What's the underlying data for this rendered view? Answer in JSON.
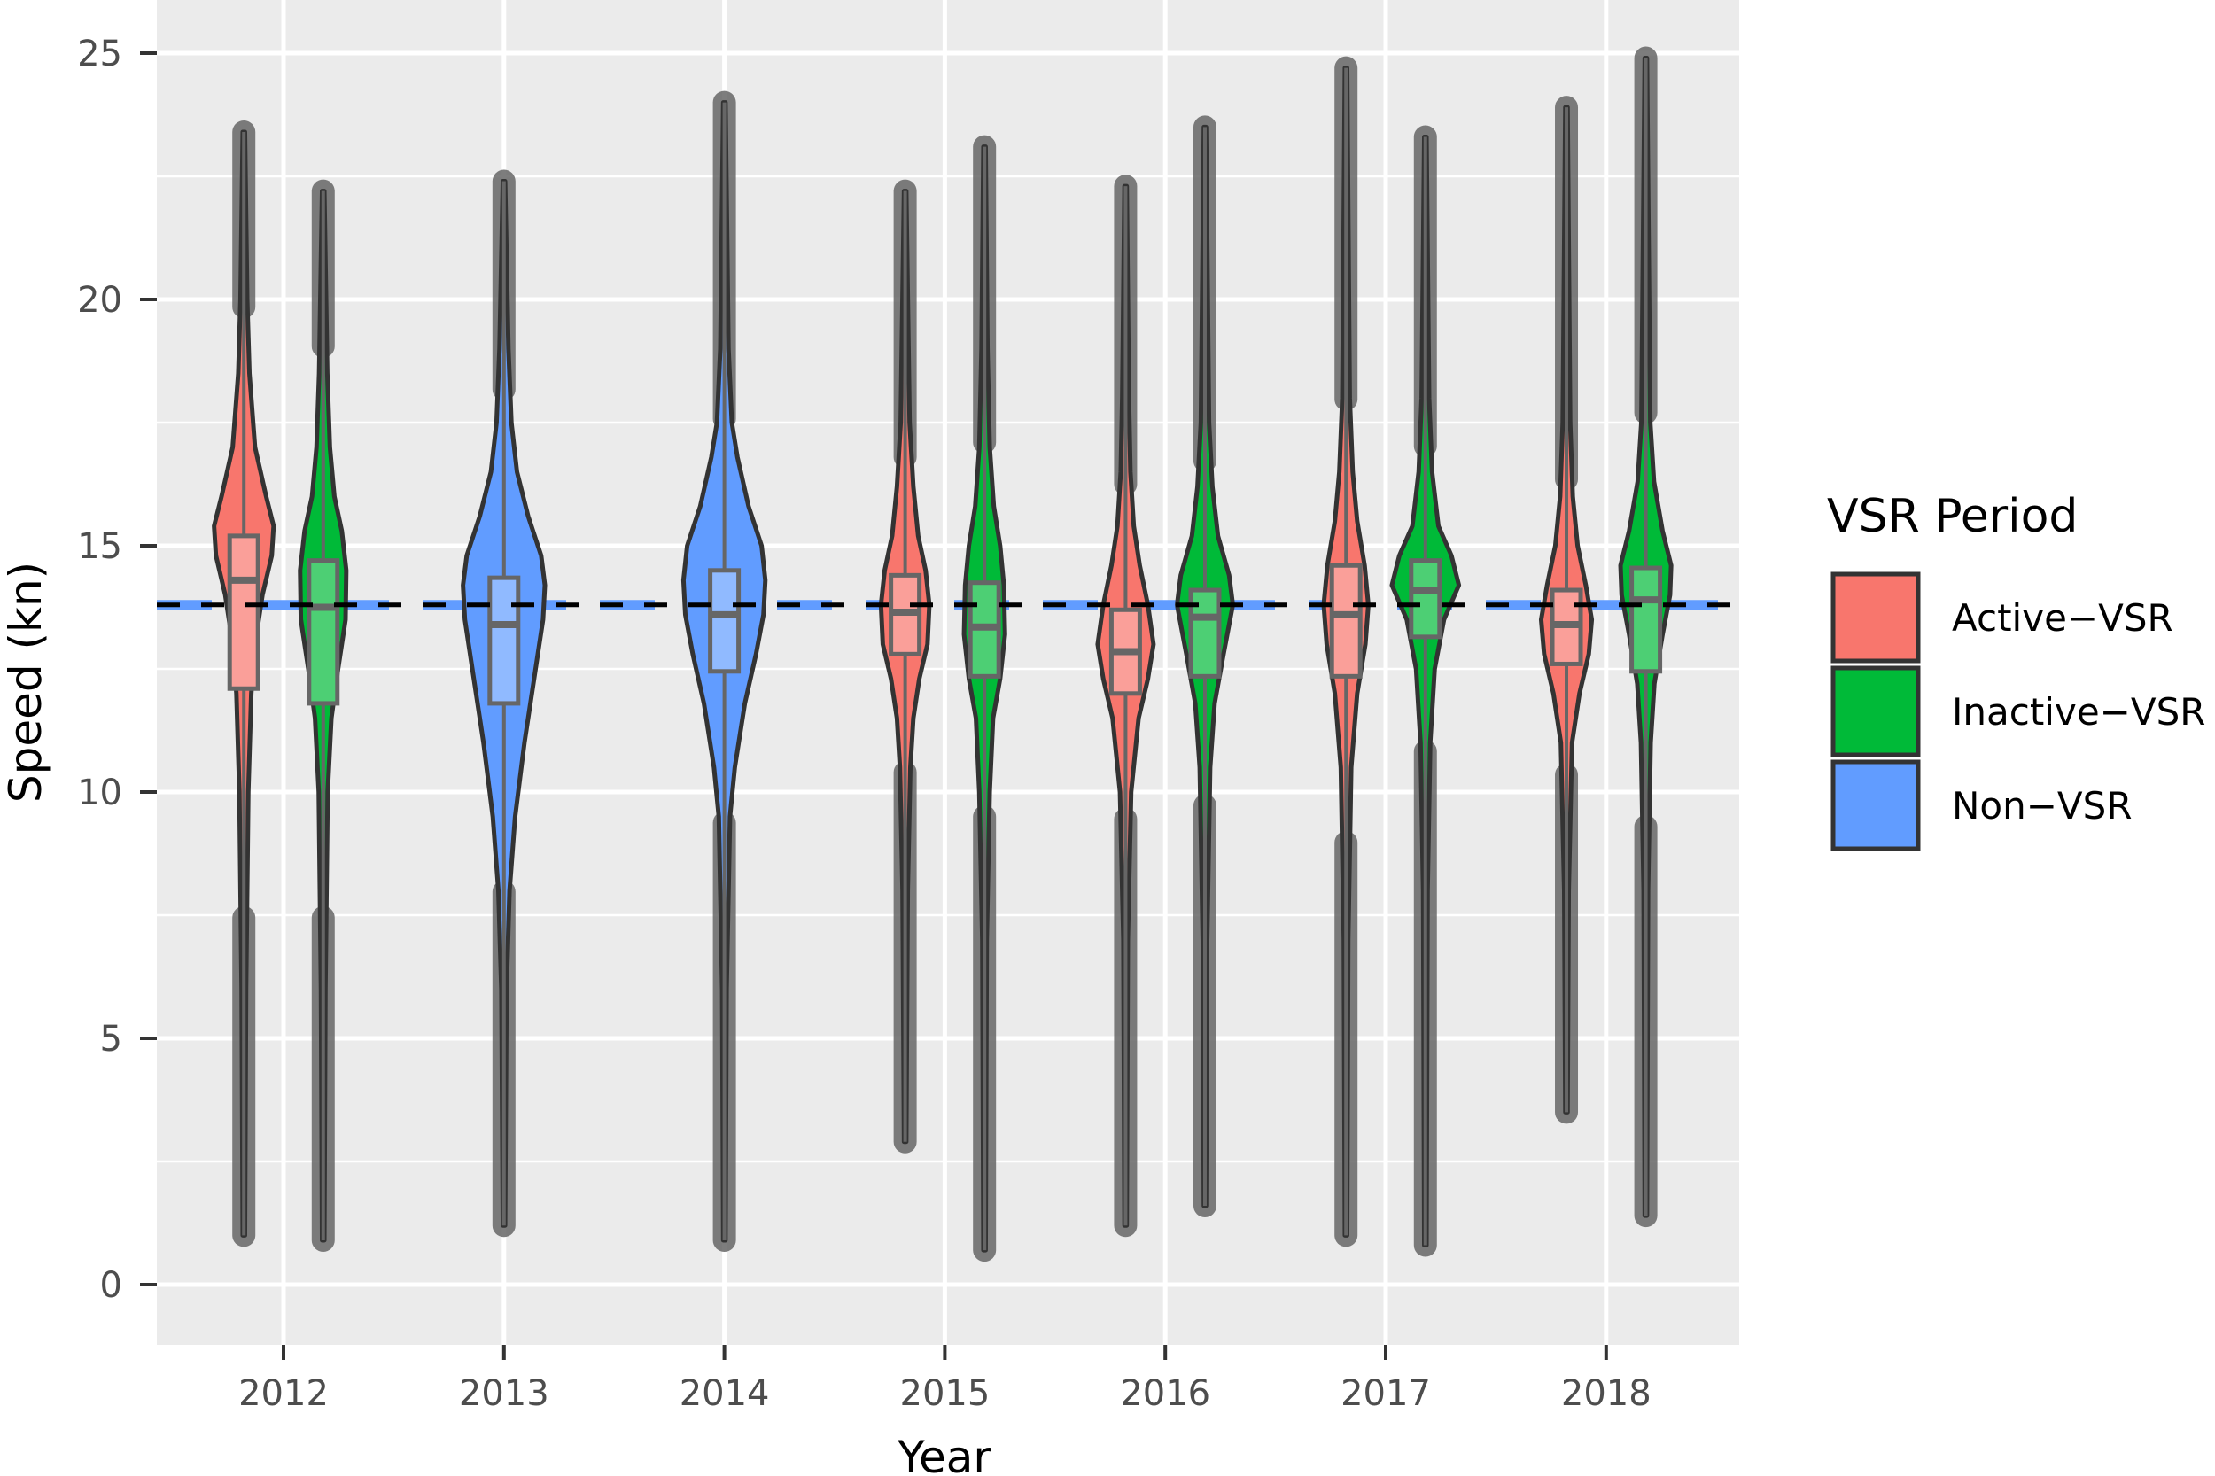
{
  "chart_data": {
    "type": "violin",
    "title": "",
    "xlabel": "Year",
    "ylabel": "Speed (kn)",
    "ylim": [
      -1.2,
      25.8
    ],
    "yticks": [
      0,
      5,
      10,
      15,
      20,
      25
    ],
    "categories": [
      "2012",
      "2013",
      "2014",
      "2015",
      "2016",
      "2017",
      "2018"
    ],
    "grid": true,
    "legend": {
      "title": "VSR Period",
      "position": "right",
      "entries": [
        {
          "label": "Active−VSR",
          "color": "#F8766D"
        },
        {
          "label": "Inactive−VSR",
          "color": "#00BA38"
        },
        {
          "label": "Non−VSR",
          "color": "#619CFF"
        }
      ]
    },
    "reference_line": {
      "value": 13.8,
      "style": "dashed",
      "colors": [
        "#619CFF",
        "#000000"
      ]
    },
    "series": [
      {
        "year": "2012",
        "group": "Active−VSR",
        "offset": -0.36,
        "min": 1.0,
        "q1": 12.1,
        "median": 14.3,
        "q3": 15.2,
        "max": 23.4,
        "profile": [
          [
            1.0,
            0.3
          ],
          [
            6,
            0.6
          ],
          [
            10,
            1.2
          ],
          [
            12,
            2
          ],
          [
            13,
            3
          ],
          [
            14,
            5
          ],
          [
            14.8,
            7.5
          ],
          [
            15.4,
            8
          ],
          [
            16,
            6
          ],
          [
            17,
            3
          ],
          [
            18.5,
            1.5
          ],
          [
            20,
            0.9
          ],
          [
            23.4,
            0.3
          ]
        ]
      },
      {
        "year": "2012",
        "group": "Inactive−VSR",
        "offset": 0.36,
        "min": 0.9,
        "q1": 11.8,
        "median": 13.75,
        "q3": 14.7,
        "max": 22.2,
        "profile": [
          [
            0.9,
            0.3
          ],
          [
            6,
            0.6
          ],
          [
            10,
            1.2
          ],
          [
            11.5,
            2.2
          ],
          [
            12.5,
            4
          ],
          [
            13.5,
            6
          ],
          [
            14.5,
            6.2
          ],
          [
            15.3,
            5
          ],
          [
            16,
            3
          ],
          [
            17,
            1.8
          ],
          [
            18.5,
            1.1
          ],
          [
            22.2,
            0.3
          ]
        ]
      },
      {
        "year": "2013",
        "group": "Non−VSR",
        "offset": 0,
        "min": 1.2,
        "q1": 11.8,
        "median": 13.4,
        "q3": 14.35,
        "max": 22.4,
        "profile": [
          [
            1.2,
            0.3
          ],
          [
            6,
            0.7
          ],
          [
            8,
            1.5
          ],
          [
            9.5,
            3
          ],
          [
            11,
            5.5
          ],
          [
            12.5,
            8.5
          ],
          [
            13.5,
            10.5
          ],
          [
            14.2,
            11
          ],
          [
            14.8,
            10
          ],
          [
            15.6,
            6.5
          ],
          [
            16.5,
            3.5
          ],
          [
            17.5,
            2
          ],
          [
            19,
            1.2
          ],
          [
            22.4,
            0.3
          ]
        ]
      },
      {
        "year": "2014",
        "group": "Non−VSR",
        "offset": 0,
        "min": 0.9,
        "q1": 12.45,
        "median": 13.6,
        "q3": 14.5,
        "max": 24.0,
        "profile": [
          [
            0.9,
            0.3
          ],
          [
            6,
            0.6
          ],
          [
            9.5,
            1.5
          ],
          [
            10.5,
            2.8
          ],
          [
            11.8,
            5.5
          ],
          [
            12.8,
            8.5
          ],
          [
            13.6,
            10.5
          ],
          [
            14.3,
            11
          ],
          [
            15,
            10
          ],
          [
            15.8,
            6.5
          ],
          [
            16.8,
            3.5
          ],
          [
            17.5,
            2
          ],
          [
            19,
            1.1
          ],
          [
            24.0,
            0.3
          ]
        ]
      },
      {
        "year": "2015",
        "group": "Active−VSR",
        "offset": -0.36,
        "min": 2.9,
        "q1": 12.8,
        "median": 13.65,
        "q3": 14.4,
        "max": 22.2,
        "profile": [
          [
            2.9,
            0.3
          ],
          [
            8,
            0.7
          ],
          [
            10.5,
            1.4
          ],
          [
            11.5,
            2.2
          ],
          [
            12.3,
            3.8
          ],
          [
            13,
            6
          ],
          [
            13.8,
            6.5
          ],
          [
            14.5,
            5.5
          ],
          [
            15.2,
            3.5
          ],
          [
            16.2,
            2.2
          ],
          [
            17.5,
            1.2
          ],
          [
            22.2,
            0.3
          ]
        ]
      },
      {
        "year": "2015",
        "group": "Inactive−VSR",
        "offset": 0.36,
        "min": 0.7,
        "q1": 12.35,
        "median": 13.35,
        "q3": 14.25,
        "max": 23.1,
        "profile": [
          [
            0.7,
            0.3
          ],
          [
            7,
            0.6
          ],
          [
            10,
            1.4
          ],
          [
            11.5,
            2.3
          ],
          [
            12.3,
            4.2
          ],
          [
            13.2,
            5.5
          ],
          [
            14.2,
            5.2
          ],
          [
            15,
            4.2
          ],
          [
            15.8,
            2.5
          ],
          [
            17,
            1.4
          ],
          [
            19,
            0.8
          ],
          [
            23.1,
            0.3
          ]
        ]
      },
      {
        "year": "2016",
        "group": "Active−VSR",
        "offset": -0.36,
        "min": 1.2,
        "q1": 12.0,
        "median": 12.85,
        "q3": 13.7,
        "max": 22.3,
        "profile": [
          [
            1.2,
            0.3
          ],
          [
            7,
            0.6
          ],
          [
            10,
            1.5
          ],
          [
            11.5,
            3.5
          ],
          [
            12.3,
            6
          ],
          [
            13,
            7.5
          ],
          [
            13.8,
            6
          ],
          [
            14.6,
            3.8
          ],
          [
            15.4,
            2.2
          ],
          [
            16.5,
            1.3
          ],
          [
            18,
            0.9
          ],
          [
            22.3,
            0.3
          ]
        ]
      },
      {
        "year": "2016",
        "group": "Inactive−VSR",
        "offset": 0.36,
        "min": 1.6,
        "q1": 12.35,
        "median": 13.55,
        "q3": 14.1,
        "max": 23.5,
        "profile": [
          [
            1.6,
            0.3
          ],
          [
            7,
            0.6
          ],
          [
            10.5,
            1.4
          ],
          [
            11.8,
            2.6
          ],
          [
            12.8,
            5
          ],
          [
            13.8,
            7.5
          ],
          [
            14.4,
            6.5
          ],
          [
            15.2,
            3.5
          ],
          [
            16.2,
            2
          ],
          [
            17.5,
            1.1
          ],
          [
            23.5,
            0.3
          ]
        ]
      },
      {
        "year": "2017",
        "group": "Active−VSR",
        "offset": -0.36,
        "min": 1.0,
        "q1": 12.35,
        "median": 13.6,
        "q3": 14.6,
        "max": 24.7,
        "profile": [
          [
            1.0,
            0.3
          ],
          [
            7,
            0.6
          ],
          [
            10.5,
            1.4
          ],
          [
            12,
            3
          ],
          [
            13,
            5.2
          ],
          [
            13.8,
            6
          ],
          [
            14.6,
            5
          ],
          [
            15.5,
            3
          ],
          [
            16.5,
            1.8
          ],
          [
            18,
            1
          ],
          [
            24.7,
            0.3
          ]
        ]
      },
      {
        "year": "2017",
        "group": "Inactive−VSR",
        "offset": 0.36,
        "min": 0.8,
        "q1": 13.15,
        "median": 14.1,
        "q3": 14.7,
        "max": 23.3,
        "profile": [
          [
            0.8,
            0.3
          ],
          [
            8,
            0.6
          ],
          [
            11,
            1.3
          ],
          [
            12.5,
            2.5
          ],
          [
            13.5,
            5
          ],
          [
            14.2,
            9
          ],
          [
            14.8,
            7
          ],
          [
            15.4,
            3.5
          ],
          [
            16.5,
            1.8
          ],
          [
            18,
            1.0
          ],
          [
            23.3,
            0.3
          ]
        ]
      },
      {
        "year": "2018",
        "group": "Active−VSR",
        "offset": -0.36,
        "min": 3.5,
        "q1": 12.6,
        "median": 13.4,
        "q3": 14.1,
        "max": 23.9,
        "profile": [
          [
            3.5,
            0.3
          ],
          [
            8,
            0.6
          ],
          [
            11,
            1.5
          ],
          [
            12,
            3.5
          ],
          [
            12.8,
            6
          ],
          [
            13.5,
            6.8
          ],
          [
            14.2,
            5.2
          ],
          [
            15,
            3
          ],
          [
            16,
            1.7
          ],
          [
            17.5,
            1
          ],
          [
            23.9,
            0.3
          ]
        ]
      },
      {
        "year": "2018",
        "group": "Inactive−VSR",
        "offset": 0.36,
        "min": 1.4,
        "q1": 12.45,
        "median": 13.9,
        "q3": 14.55,
        "max": 24.9,
        "profile": [
          [
            1.4,
            0.3
          ],
          [
            8,
            0.6
          ],
          [
            11,
            1.3
          ],
          [
            12.2,
            2.3
          ],
          [
            13.2,
            4.5
          ],
          [
            14,
            6.5
          ],
          [
            14.6,
            6.8
          ],
          [
            15.3,
            4.5
          ],
          [
            16.3,
            2.2
          ],
          [
            17.5,
            1.2
          ],
          [
            24.9,
            0.3
          ]
        ]
      }
    ]
  }
}
